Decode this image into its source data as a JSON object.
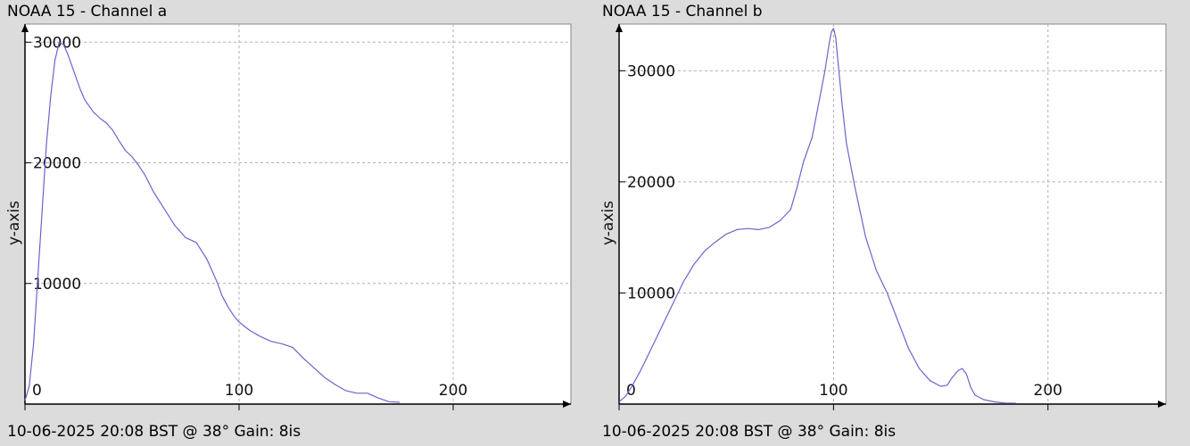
{
  "colors": {
    "background": "#dcdcdc",
    "plot_area": "#ffffff",
    "line": "#6666cc",
    "grid": "#b0b0b0",
    "axis": "#000000"
  },
  "chart_data": [
    {
      "type": "line",
      "title": "NOAA 15 - Channel a",
      "footer": "10-06-2025 20:08 BST @ 38° Gain: 8is",
      "ylabel": "y-axis",
      "xlabel": "",
      "xlim": [
        0,
        255
      ],
      "ylim": [
        0,
        31500
      ],
      "xticks": [
        0,
        100,
        200
      ],
      "yticks": [
        10000,
        20000,
        30000
      ],
      "xtick_labels": [
        "0",
        "100",
        "200"
      ],
      "ytick_labels": [
        "10000",
        "20000",
        "30000"
      ],
      "grid": true,
      "series": [
        {
          "x": [
            0,
            2,
            4,
            6,
            8,
            10,
            12,
            14,
            16,
            18,
            20,
            22,
            24,
            26,
            28,
            30,
            32,
            35,
            38,
            41,
            44,
            47,
            50,
            53,
            56,
            60,
            65,
            70,
            75,
            80,
            85,
            87,
            90,
            92,
            95,
            98,
            100,
            105,
            110,
            115,
            120,
            125,
            130,
            135,
            140,
            145,
            150,
            155,
            160,
            165,
            170,
            175
          ],
          "y": [
            300,
            1500,
            5000,
            10500,
            16000,
            21500,
            25500,
            28500,
            30000,
            29800,
            29000,
            28000,
            27000,
            26000,
            25200,
            24700,
            24200,
            23700,
            23300,
            22700,
            21800,
            21000,
            20500,
            19800,
            19000,
            17600,
            16200,
            14800,
            13800,
            13400,
            12000,
            11200,
            10000,
            9000,
            8000,
            7200,
            6800,
            6100,
            5600,
            5200,
            5000,
            4700,
            3800,
            3000,
            2200,
            1600,
            1100,
            900,
            900,
            500,
            200,
            150
          ]
        }
      ]
    },
    {
      "type": "line",
      "title": "NOAA 15 - Channel b",
      "footer": "10-06-2025 20:08 BST @ 38° Gain: 8is",
      "ylabel": "y-axis",
      "xlabel": "",
      "xlim": [
        0,
        255
      ],
      "ylim": [
        0,
        34200
      ],
      "xticks": [
        0,
        100,
        200
      ],
      "yticks": [
        10000,
        20000,
        30000
      ],
      "xtick_labels": [
        "0",
        "100",
        "200"
      ],
      "ytick_labels": [
        "10000",
        "20000",
        "30000"
      ],
      "grid": true,
      "series": [
        {
          "x": [
            0,
            3,
            6,
            10,
            15,
            20,
            25,
            30,
            35,
            40,
            45,
            50,
            55,
            60,
            65,
            70,
            75,
            80,
            83,
            86,
            90,
            93,
            96,
            98,
            99,
            100,
            101,
            102,
            104,
            106,
            110,
            115,
            120,
            125,
            130,
            135,
            140,
            145,
            150,
            153,
            155,
            158,
            160,
            162,
            164,
            166,
            170,
            175,
            180,
            185
          ],
          "y": [
            200,
            700,
            1600,
            3000,
            5000,
            7000,
            9000,
            11000,
            12600,
            13800,
            14600,
            15300,
            15700,
            15800,
            15700,
            15900,
            16500,
            17500,
            19500,
            21800,
            24000,
            27000,
            30000,
            32500,
            33500,
            33800,
            33000,
            31000,
            27000,
            23500,
            19500,
            15000,
            12000,
            10000,
            7500,
            5000,
            3200,
            2100,
            1600,
            1700,
            2300,
            3000,
            3200,
            2700,
            1500,
            800,
            400,
            200,
            100,
            80
          ]
        }
      ]
    }
  ]
}
